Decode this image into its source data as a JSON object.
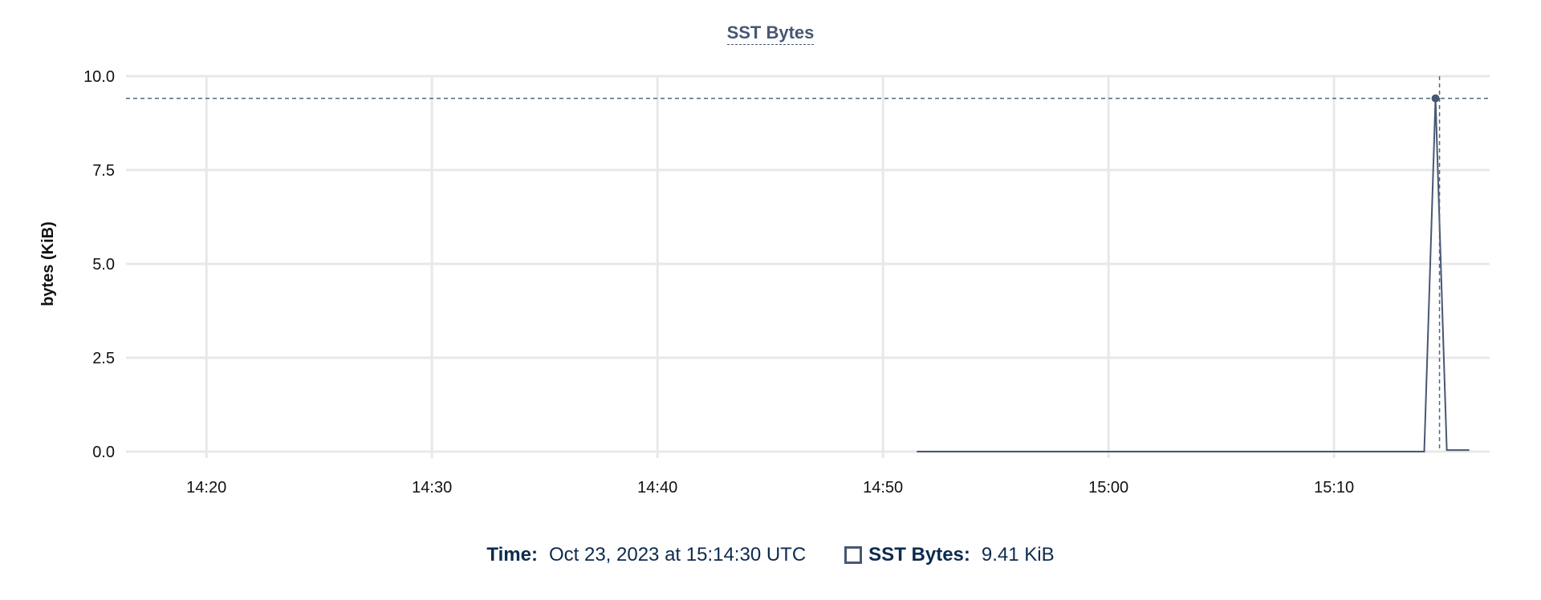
{
  "chart_data": {
    "type": "line",
    "title": "SST Bytes",
    "ylabel": "bytes (KiB)",
    "xlabel": "",
    "ylim": [
      0,
      10
    ],
    "yticks": [
      "0.0",
      "2.5",
      "5.0",
      "7.5",
      "10.0"
    ],
    "xlim": [
      "14:16:26",
      "15:16:54"
    ],
    "xticks": [
      "14:20",
      "14:30",
      "14:40",
      "14:50",
      "15:00",
      "15:10"
    ],
    "grid": true,
    "series": [
      {
        "name": "SST Bytes",
        "color": "#475872",
        "points": [
          [
            "14:51:30",
            0
          ],
          [
            "15:14:00",
            0
          ],
          [
            "15:14:30",
            9.41
          ],
          [
            "15:15:00",
            0.04
          ],
          [
            "15:16:00",
            0.04
          ]
        ]
      }
    ],
    "hover": {
      "time": "15:14:30",
      "value": 9.41
    }
  },
  "legend": {
    "time_label": "Time:",
    "time_value": "Oct 23, 2023 at 15:14:30 UTC",
    "series_label": "SST Bytes:",
    "series_value": "9.41 KiB"
  }
}
